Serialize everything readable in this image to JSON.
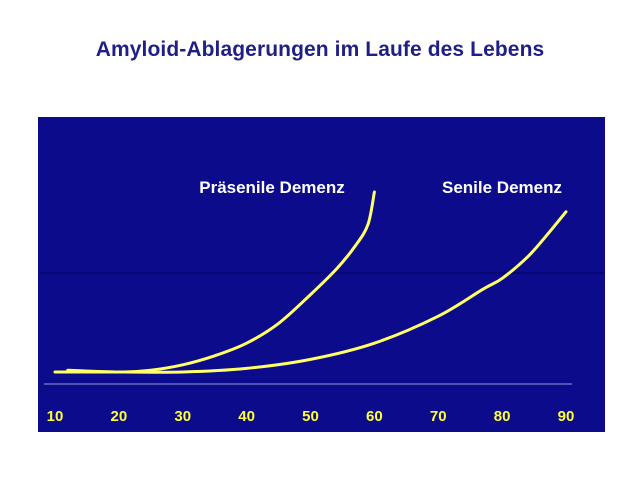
{
  "slide": {
    "title": "Amyloid-Ablagerungen im Laufe des Lebens"
  },
  "colors": {
    "background": "#ffffff",
    "panel": "#0b0b8c",
    "title": "#1f1f86",
    "curve": "#ffff66",
    "text": "#ffffff",
    "tick_text": "#ffff33"
  },
  "chart_data": {
    "type": "line",
    "title": "Amyloid-Ablagerungen im Laufe des Lebens",
    "xlabel": "",
    "ylabel": "",
    "x_ticks": [
      10,
      20,
      30,
      40,
      50,
      60,
      70,
      80,
      90
    ],
    "xlim": [
      10,
      90
    ],
    "ylim": [
      0,
      1
    ],
    "grid": false,
    "series": [
      {
        "name": "Präsenile Demenz",
        "points": [
          [
            12,
            0.01
          ],
          [
            20,
            0.0
          ],
          [
            25,
            0.01
          ],
          [
            30,
            0.04
          ],
          [
            35,
            0.09
          ],
          [
            40,
            0.16
          ],
          [
            45,
            0.27
          ],
          [
            50,
            0.43
          ],
          [
            54,
            0.57
          ],
          [
            57,
            0.7
          ],
          [
            59,
            0.82
          ],
          [
            60,
            1.0
          ]
        ]
      },
      {
        "name": "Senile Demenz",
        "points": [
          [
            10,
            0.0
          ],
          [
            20,
            0.0
          ],
          [
            30,
            0.0
          ],
          [
            40,
            0.02
          ],
          [
            50,
            0.07
          ],
          [
            60,
            0.16
          ],
          [
            70,
            0.31
          ],
          [
            77,
            0.46
          ],
          [
            80,
            0.52
          ],
          [
            84,
            0.64
          ],
          [
            87,
            0.76
          ],
          [
            90,
            0.89
          ]
        ]
      }
    ]
  }
}
